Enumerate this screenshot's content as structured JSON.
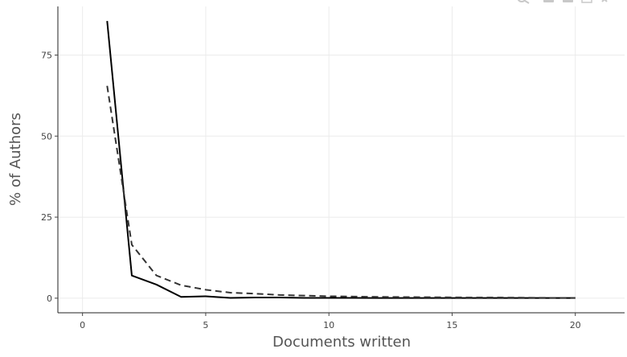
{
  "chart_data": {
    "type": "line",
    "title": "",
    "xlabel": "Documents written",
    "ylabel": "% of Authors",
    "xlim": [
      -1,
      22
    ],
    "ylim": [
      -4.5,
      90
    ],
    "grid": true,
    "legend": "none",
    "x_ticks": [
      0,
      5,
      10,
      15,
      20
    ],
    "y_ticks": [
      0,
      25,
      50,
      75
    ],
    "series": [
      {
        "style": "solid",
        "color": "#000000",
        "x": [
          1,
          2,
          3,
          4,
          5,
          6,
          7,
          8,
          9,
          10,
          11,
          12,
          13,
          14,
          15,
          16,
          17,
          18,
          19,
          20
        ],
        "y": [
          85.5,
          7.0,
          4.2,
          0.4,
          0.6,
          0.1,
          0.2,
          0.2,
          0.1,
          0.1,
          0.1,
          0.05,
          0.05,
          0.05,
          0.05,
          0.05,
          0.05,
          0.05,
          0.05,
          0.05
        ]
      },
      {
        "style": "dashed",
        "color": "#333333",
        "x": [
          1,
          2,
          3,
          4,
          5,
          6,
          7,
          8,
          9,
          10,
          11,
          12,
          13,
          14,
          15,
          16,
          17,
          18,
          19,
          20
        ],
        "y": [
          65.5,
          16.5,
          7.0,
          4.0,
          2.6,
          1.7,
          1.4,
          1.0,
          0.8,
          0.6,
          0.5,
          0.4,
          0.35,
          0.3,
          0.25,
          0.2,
          0.2,
          0.15,
          0.1,
          0.1
        ]
      }
    ]
  },
  "modebar": {
    "icons": [
      "zoom-icon",
      "pan-icon",
      "box-select-icon",
      "autoscale-icon",
      "reset-icon"
    ]
  }
}
